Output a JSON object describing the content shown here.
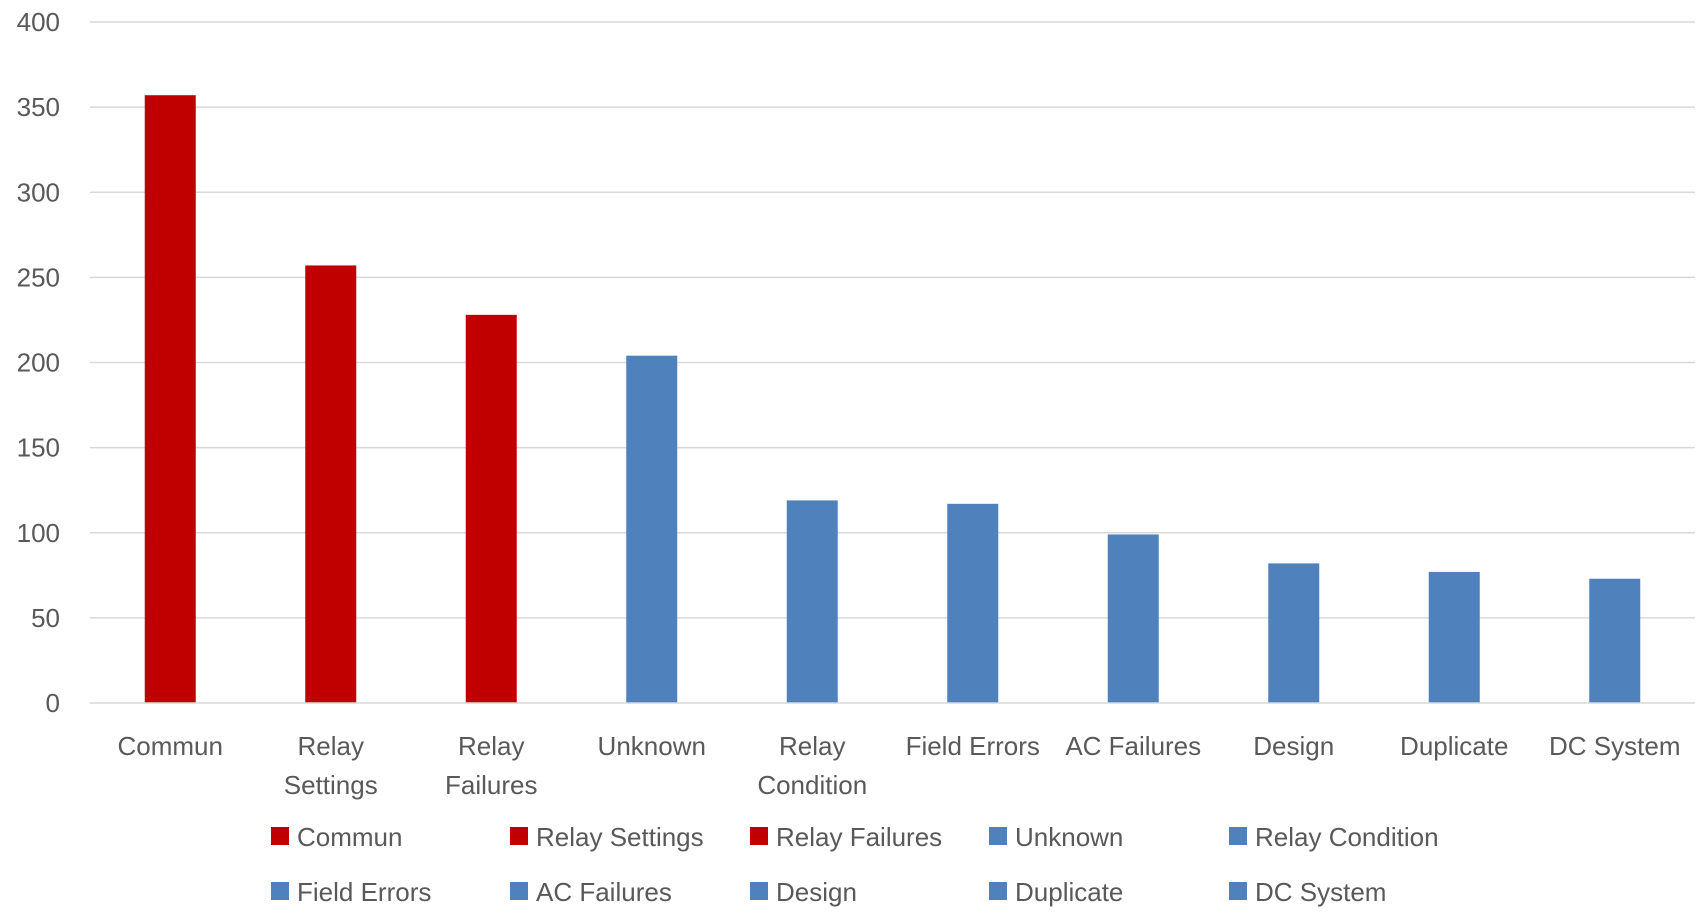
{
  "chart_data": {
    "type": "bar",
    "categories": [
      "Commun",
      "Relay Settings",
      "Relay Failures",
      "Unknown",
      "Relay Condition",
      "Field Errors",
      "AC Failures",
      "Design",
      "Duplicate",
      "DC System"
    ],
    "category_label_lines": [
      [
        "Commun"
      ],
      [
        "Relay",
        "Settings"
      ],
      [
        "Relay",
        "Failures"
      ],
      [
        "Unknown"
      ],
      [
        "Relay",
        "Condition"
      ],
      [
        "Field Errors"
      ],
      [
        "AC Failures"
      ],
      [
        "Design"
      ],
      [
        "Duplicate"
      ],
      [
        "DC System"
      ]
    ],
    "values": [
      357,
      257,
      228,
      204,
      119,
      117,
      99,
      82,
      77,
      73
    ],
    "colors": [
      "#c00000",
      "#c00000",
      "#c00000",
      "#4f81bd",
      "#4f81bd",
      "#4f81bd",
      "#4f81bd",
      "#4f81bd",
      "#4f81bd",
      "#4f81bd"
    ],
    "title": "",
    "xlabel": "",
    "ylabel": "",
    "ylim": [
      0,
      400
    ],
    "yticks": [
      0,
      50,
      100,
      150,
      200,
      250,
      300,
      350,
      400
    ],
    "grid": true,
    "legend": {
      "placement": "bottom",
      "entries": [
        {
          "label": "Commun",
          "color": "#c00000"
        },
        {
          "label": "Relay Settings",
          "color": "#c00000"
        },
        {
          "label": "Relay Failures",
          "color": "#c00000"
        },
        {
          "label": "Unknown",
          "color": "#4f81bd"
        },
        {
          "label": "Relay Condition",
          "color": "#4f81bd"
        },
        {
          "label": "Field Errors",
          "color": "#4f81bd"
        },
        {
          "label": "AC Failures",
          "color": "#4f81bd"
        },
        {
          "label": "Design",
          "color": "#4f81bd"
        },
        {
          "label": "Duplicate",
          "color": "#4f81bd"
        },
        {
          "label": "DC System",
          "color": "#4f81bd"
        }
      ]
    }
  }
}
